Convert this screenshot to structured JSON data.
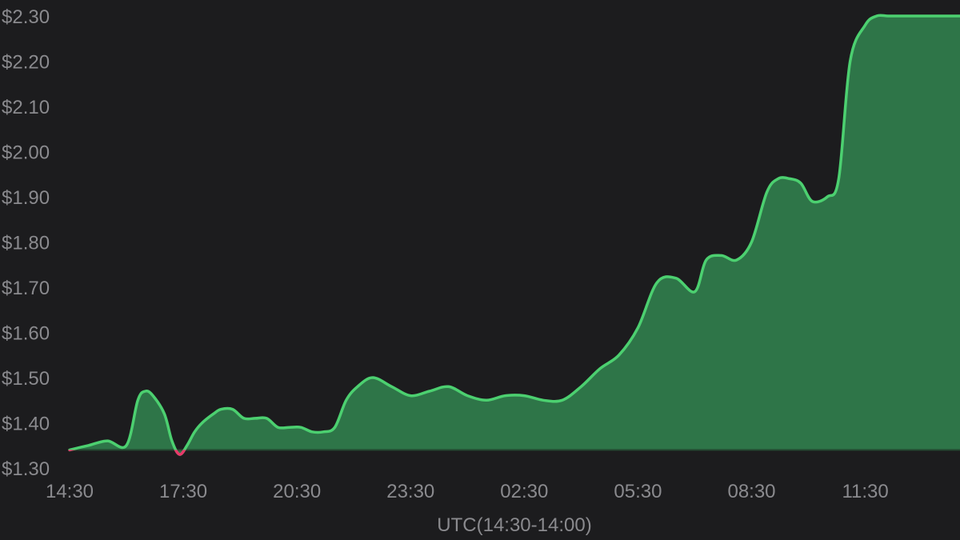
{
  "chart_data": {
    "type": "area",
    "xlabel": "UTC(14:30-14:00)",
    "ylabel": "",
    "title": "",
    "ylim": [
      1.3,
      2.3
    ],
    "baseline": 1.34,
    "y_ticks": [
      "$1.30",
      "$1.40",
      "$1.50",
      "$1.60",
      "$1.70",
      "$1.80",
      "$1.90",
      "$2.00",
      "$2.10",
      "$2.20",
      "$2.30"
    ],
    "x_tick_labels": [
      "14:30",
      "17:30",
      "20:30",
      "23:30",
      "02:30",
      "05:30",
      "08:30",
      "11:30"
    ],
    "x_range_hours": [
      0,
      23.5
    ],
    "x": [
      0,
      0.5,
      1,
      1.5,
      1.8,
      2,
      2.2,
      2.5,
      2.7,
      2.9,
      3.1,
      3.3,
      3.5,
      3.8,
      4,
      4.3,
      4.6,
      4.9,
      5.2,
      5.5,
      5.8,
      6.1,
      6.4,
      6.7,
      7,
      7.3,
      7.6,
      8,
      8.5,
      9,
      9.5,
      10,
      10.5,
      11,
      11.5,
      12,
      12.5,
      13,
      13.5,
      14,
      14.5,
      15,
      15.5,
      16,
      16.5,
      16.8,
      17.2,
      17.6,
      18,
      18.4,
      18.7,
      19,
      19.3,
      19.6,
      20,
      20.3,
      20.6,
      21,
      21.3,
      21.6,
      22,
      22.3,
      22.7,
      23,
      23.5
    ],
    "values": [
      1.34,
      1.35,
      1.36,
      1.35,
      1.45,
      1.47,
      1.46,
      1.42,
      1.36,
      1.33,
      1.35,
      1.38,
      1.4,
      1.42,
      1.43,
      1.43,
      1.41,
      1.41,
      1.41,
      1.39,
      1.39,
      1.39,
      1.38,
      1.38,
      1.39,
      1.45,
      1.48,
      1.5,
      1.48,
      1.46,
      1.47,
      1.48,
      1.46,
      1.45,
      1.46,
      1.46,
      1.45,
      1.45,
      1.48,
      1.52,
      1.55,
      1.61,
      1.71,
      1.72,
      1.69,
      1.76,
      1.77,
      1.76,
      1.8,
      1.91,
      1.94,
      1.94,
      1.93,
      1.89,
      1.9,
      1.94,
      2.2,
      2.28,
      2.3,
      2.3,
      2.3,
      2.3,
      2.3,
      2.3,
      2.3
    ],
    "colors": {
      "line_up": "#4cd070",
      "line_down": "#e8386a",
      "fill": "#2e7548",
      "baseline": "#244a32"
    }
  }
}
